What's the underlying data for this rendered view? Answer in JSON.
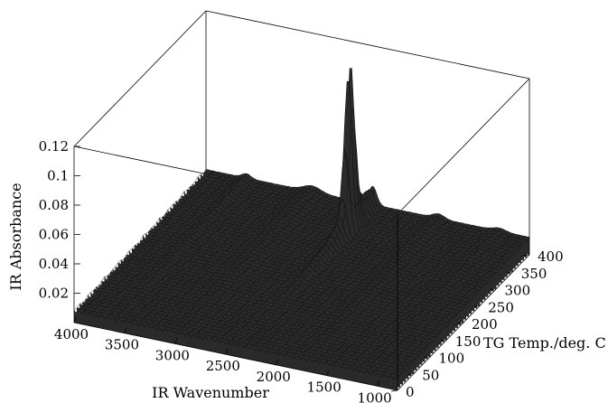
{
  "chart_data": {
    "type": "surface3d",
    "title": "",
    "xlabel": "IR Wavenumber",
    "ylabel": "TG Temp./deg. C",
    "zlabel": "IR Absorbance",
    "xlim": [
      4000,
      800
    ],
    "ylim": [
      0,
      400
    ],
    "zlim": [
      0,
      0.12
    ],
    "x_ticks": [
      "4000",
      "3500",
      "3000",
      "2500",
      "2000",
      "1500",
      "1000"
    ],
    "x_tick_values": [
      4000,
      3500,
      3000,
      2500,
      2000,
      1500,
      1000
    ],
    "y_ticks": [
      "0",
      "50",
      "100",
      "150",
      "200",
      "250",
      "300",
      "350",
      "400"
    ],
    "y_tick_values": [
      0,
      50,
      100,
      150,
      200,
      250,
      300,
      350,
      400
    ],
    "z_ticks": [
      "0.02",
      "0.04",
      "0.06",
      "0.08",
      "0.1",
      "0.12"
    ],
    "z_tick_values": [
      0.02,
      0.04,
      0.06,
      0.08,
      0.1,
      0.12
    ],
    "baseline_absorbance": 0.008,
    "peak": {
      "wavenumber": 2350,
      "temperature": 330,
      "absorbance": 0.12
    }
  }
}
